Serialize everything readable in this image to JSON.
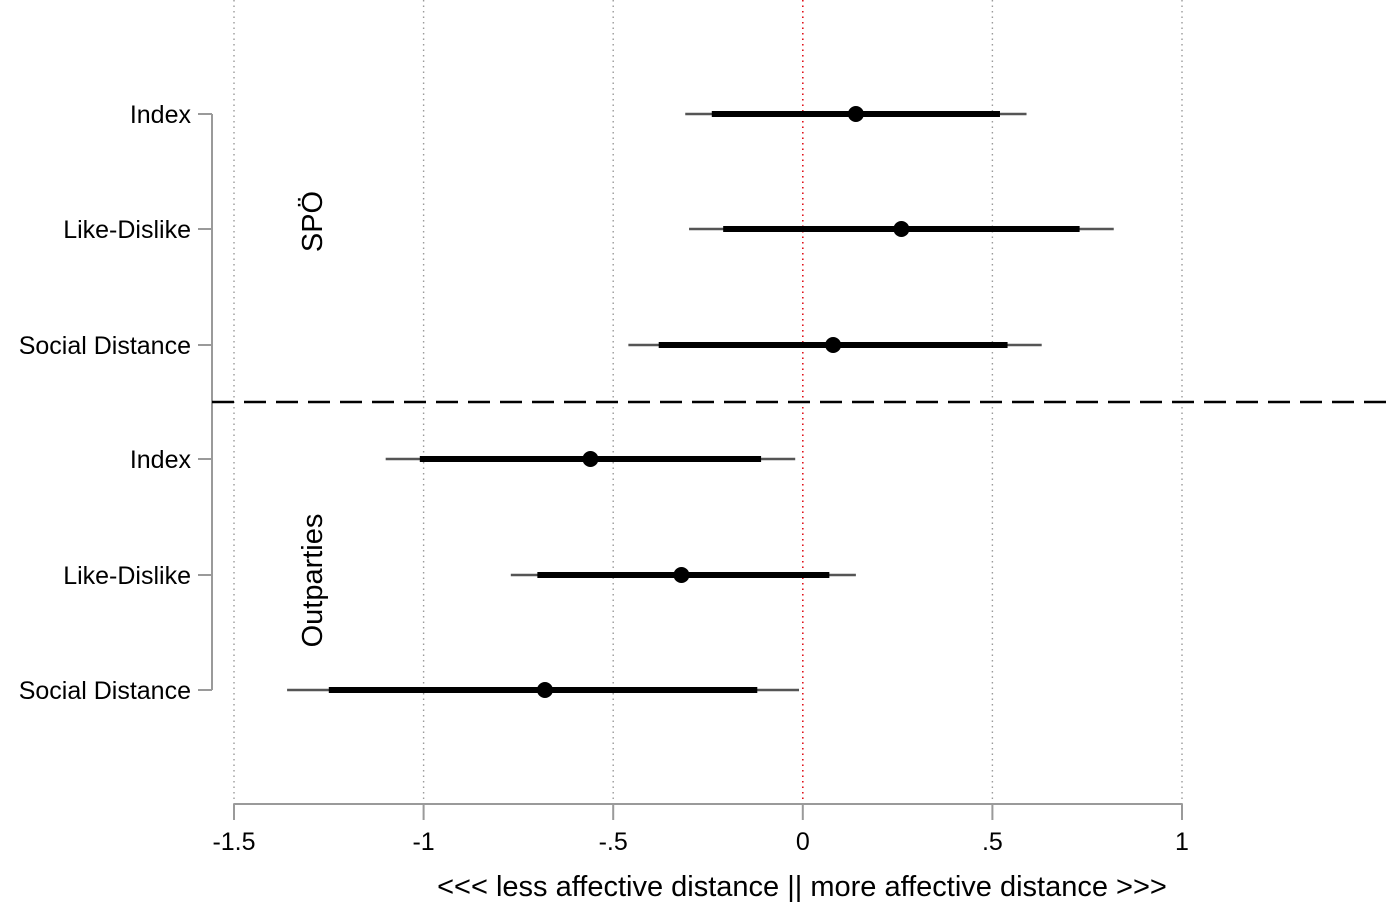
{
  "chart_data": {
    "type": "coefficient-plot",
    "title": "",
    "xlabel": "<<< less affective distance || more affective distance >>>",
    "xlim": [
      -1.5,
      1
    ],
    "x_ticks": [
      -1.5,
      -1,
      -0.5,
      0,
      0.5,
      1
    ],
    "x_tick_labels": [
      "-1.5",
      "-1",
      "-.5",
      "0",
      ".5",
      "1"
    ],
    "reference_line": 0,
    "grid": "vertical dotted",
    "groups": [
      {
        "name": "SPÖ",
        "rows": [
          {
            "label": "Index",
            "estimate": 0.14,
            "ci95": [
              -0.31,
              0.59
            ],
            "ci_inner": [
              -0.24,
              0.52
            ]
          },
          {
            "label": "Like-Dislike",
            "estimate": 0.26,
            "ci95": [
              -0.3,
              0.82
            ],
            "ci_inner": [
              -0.21,
              0.73
            ]
          },
          {
            "label": "Social Distance",
            "estimate": 0.08,
            "ci95": [
              -0.46,
              0.63
            ],
            "ci_inner": [
              -0.38,
              0.54
            ]
          }
        ]
      },
      {
        "name": "Outparties",
        "rows": [
          {
            "label": "Index",
            "estimate": -0.56,
            "ci95": [
              -1.1,
              -0.02
            ],
            "ci_inner": [
              -1.01,
              -0.11
            ]
          },
          {
            "label": "Like-Dislike",
            "estimate": -0.32,
            "ci95": [
              -0.77,
              0.14
            ],
            "ci_inner": [
              -0.7,
              0.07
            ]
          },
          {
            "label": "Social Distance",
            "estimate": -0.68,
            "ci95": [
              -1.36,
              -0.01
            ],
            "ci_inner": [
              -1.25,
              -0.12
            ]
          }
        ]
      }
    ]
  }
}
